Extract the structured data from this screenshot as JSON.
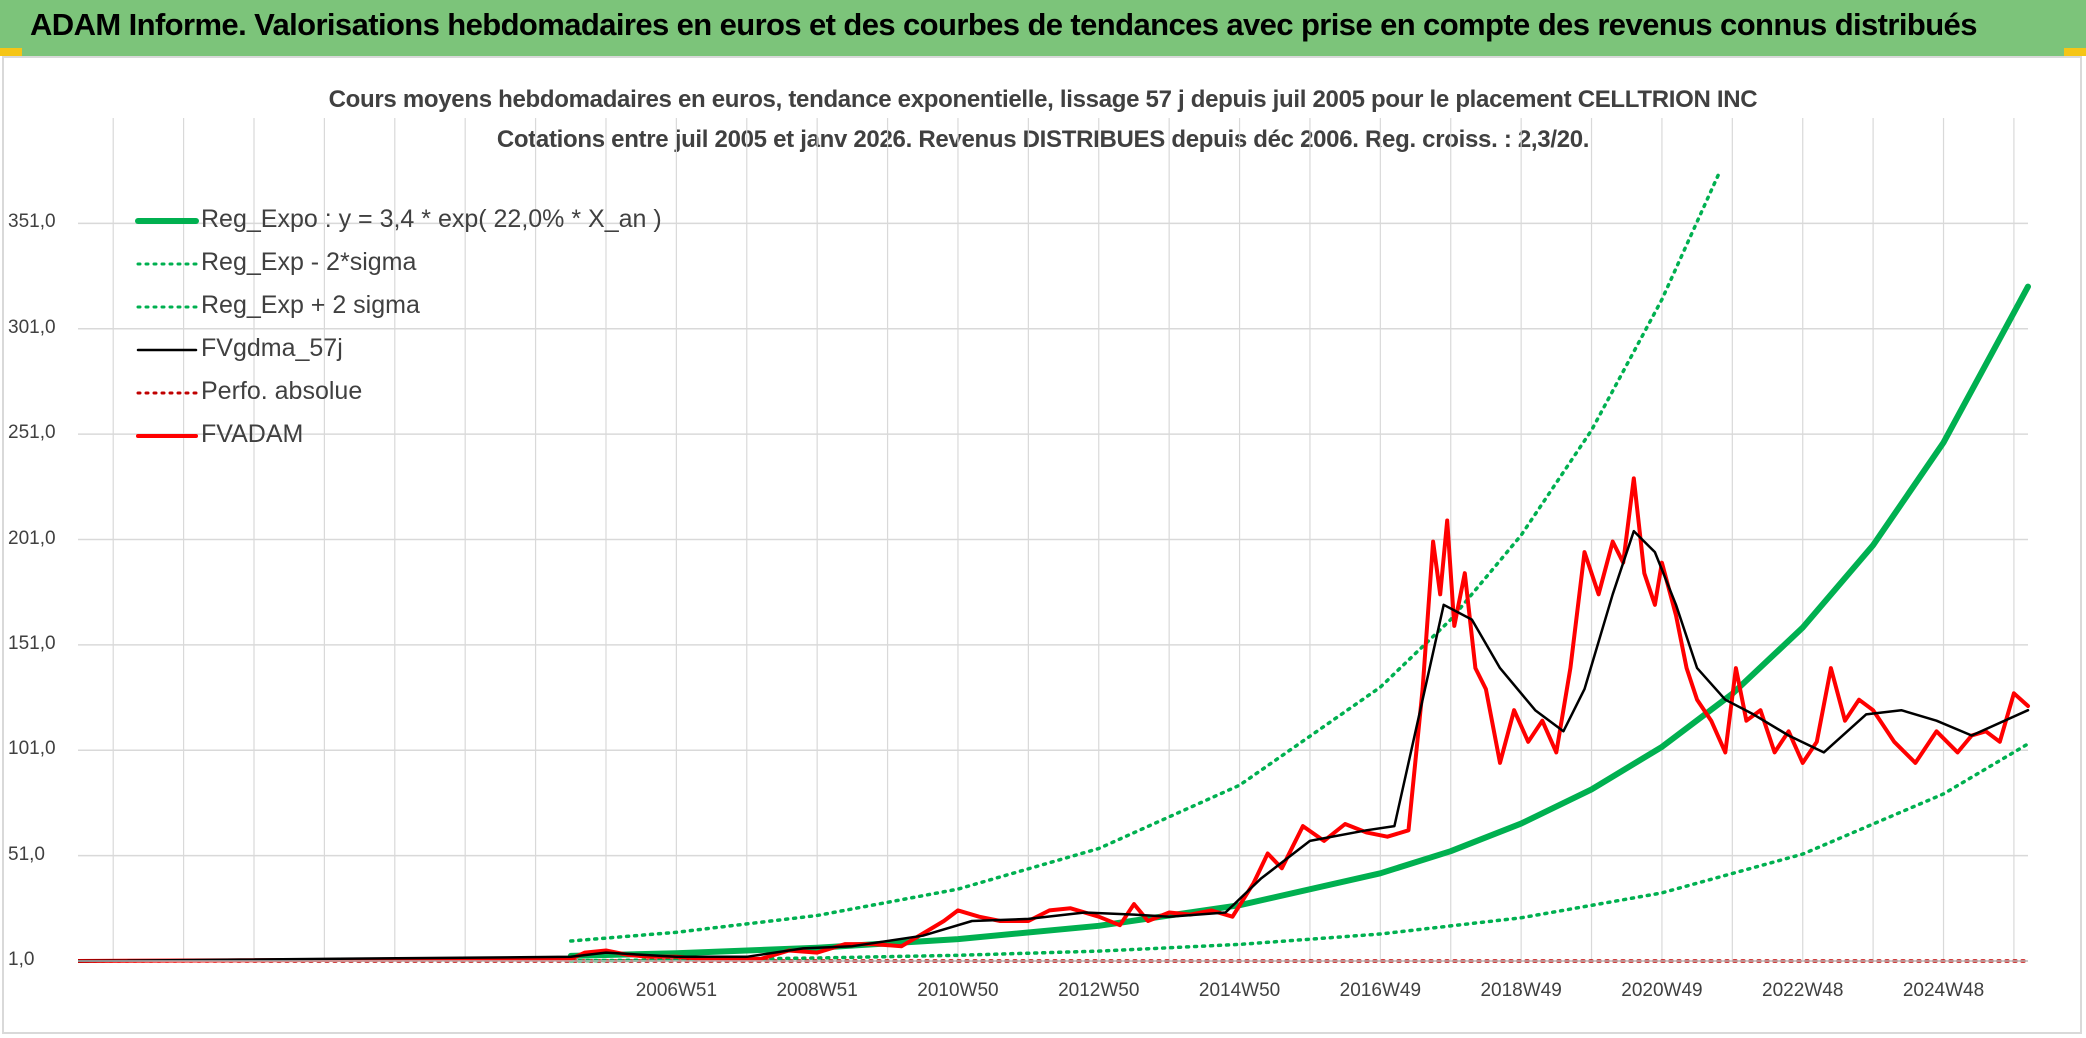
{
  "header": {
    "title": "ADAM Informe. Valorisations hebdomadaires en euros et des courbes de tendances avec prise en compte des revenus connus distribués",
    "accent_color": "#7cc47a"
  },
  "chart_data": {
    "type": "line",
    "title": "Cours moyens hebdomadaires en euros, tendance exponentielle, lissage 57 j depuis juil 2005 pour le placement CELLTRION INC",
    "subtitle": "Cotations entre juil 2005 et janv 2026. Revenus DISTRIBUES depuis déc 2006. Reg. croiss. : 2,3/20.",
    "xlabel": "",
    "ylabel": "",
    "ylim": [
      1,
      401
    ],
    "xlim": [
      1998.5,
      2026.2
    ],
    "grid": true,
    "legend_position": "top-left",
    "y_ticks": [
      "1,0",
      "51,0",
      "101,0",
      "151,0",
      "201,0",
      "251,0",
      "301,0",
      "351,0"
    ],
    "y_tick_values": [
      1,
      51,
      101,
      151,
      201,
      251,
      301,
      351
    ],
    "x_ticks": [
      "2006W51",
      "2008W51",
      "2010W50",
      "2012W50",
      "2014W50",
      "2016W49",
      "2018W49",
      "2020W49",
      "2022W48",
      "2024W48"
    ],
    "x_tick_values": [
      2007.0,
      2009.0,
      2011.0,
      2013.0,
      2015.0,
      2017.0,
      2019.0,
      2021.0,
      2023.0,
      2025.0
    ],
    "series": [
      {
        "name": "Reg_Expo : y = 3,4 * exp( 22,0% *  X_an )",
        "color": "#00b050",
        "style": "solid-thick",
        "x": [
          2005.5,
          2007,
          2009,
          2011,
          2013,
          2015,
          2017,
          2018,
          2019,
          2020,
          2021,
          2022,
          2023,
          2024,
          2025,
          2026.2
        ],
        "values": [
          3.4,
          4.7,
          7.3,
          11.4,
          17.7,
          27.5,
          42.6,
          53.1,
          66.2,
          82.4,
          102.6,
          127.8,
          159.2,
          198.3,
          247.0,
          321.0
        ]
      },
      {
        "name": "Reg_Exp - 2*sigma",
        "color": "#00b050",
        "style": "dotted",
        "x": [
          2005.5,
          2007,
          2009,
          2011,
          2013,
          2015,
          2017,
          2019,
          2021,
          2023,
          2025,
          2026.2
        ],
        "values": [
          1.1,
          1.5,
          2.4,
          3.7,
          5.7,
          8.9,
          13.8,
          21.5,
          33.3,
          51.7,
          80.3,
          104.0
        ]
      },
      {
        "name": "Reg_Exp + 2 sigma",
        "color": "#00b050",
        "style": "dotted",
        "x": [
          2005.5,
          2007,
          2009,
          2011,
          2013,
          2015,
          2017,
          2018,
          2019,
          2020,
          2021,
          2021.8
        ],
        "values": [
          10.5,
          14.6,
          22.6,
          35.1,
          54.4,
          84.4,
          130.9,
          163.0,
          203.0,
          252.8,
          314.9,
          374.0
        ]
      },
      {
        "name": "FVgdma_57j",
        "color": "#000000",
        "style": "solid",
        "x": [
          1998.5,
          2005.5,
          2006,
          2007,
          2008,
          2008.8,
          2009.5,
          2010.5,
          2011.2,
          2012,
          2012.8,
          2013.5,
          2014,
          2014.8,
          2015.3,
          2016,
          2016.8,
          2017.2,
          2017.6,
          2017.9,
          2018.3,
          2018.7,
          2019.2,
          2019.6,
          2019.9,
          2020.3,
          2020.6,
          2020.9,
          2021.2,
          2021.5,
          2021.9,
          2022.3,
          2022.8,
          2023.3,
          2023.9,
          2024.4,
          2024.9,
          2025.4,
          2026.2
        ],
        "values": [
          1,
          3,
          5,
          3,
          3,
          7,
          8,
          13,
          20,
          21,
          24,
          23,
          22,
          24,
          40,
          58,
          63,
          65,
          125,
          170,
          163,
          140,
          120,
          110,
          130,
          175,
          205,
          195,
          170,
          140,
          125,
          118,
          108,
          100,
          118,
          120,
          115,
          108,
          120
        ]
      },
      {
        "name": "Perfo. absolue",
        "color": "#c00000",
        "style": "dotted",
        "x": [
          1998.5,
          2026.2
        ],
        "values": [
          1,
          1
        ]
      },
      {
        "name": "FVADAM",
        "color": "#ff0000",
        "style": "solid-thick",
        "x": [
          1998.5,
          2005.5,
          2005.7,
          2006.0,
          2006.3,
          2006.6,
          2007.0,
          2007.4,
          2007.8,
          2008.2,
          2008.6,
          2009.0,
          2009.4,
          2009.8,
          2010.2,
          2010.5,
          2010.8,
          2011.0,
          2011.3,
          2011.6,
          2012.0,
          2012.3,
          2012.6,
          2013.0,
          2013.3,
          2013.5,
          2013.7,
          2014.0,
          2014.3,
          2014.6,
          2014.9,
          2015.2,
          2015.4,
          2015.6,
          2015.9,
          2016.2,
          2016.5,
          2016.8,
          2017.1,
          2017.4,
          2017.6,
          2017.75,
          2017.85,
          2017.95,
          2018.05,
          2018.2,
          2018.35,
          2018.5,
          2018.7,
          2018.9,
          2019.1,
          2019.3,
          2019.5,
          2019.7,
          2019.9,
          2020.1,
          2020.3,
          2020.45,
          2020.6,
          2020.75,
          2020.9,
          2021.0,
          2021.2,
          2021.35,
          2021.5,
          2021.7,
          2021.9,
          2022.05,
          2022.2,
          2022.4,
          2022.6,
          2022.8,
          2023.0,
          2023.2,
          2023.4,
          2023.6,
          2023.8,
          2024.0,
          2024.1,
          2024.3,
          2024.6,
          2024.9,
          2025.2,
          2025.4,
          2025.6,
          2025.8,
          2026.0,
          2026.2
        ],
        "values": [
          1,
          2,
          5,
          6,
          4,
          3,
          3,
          2,
          2,
          2,
          6,
          5,
          9,
          9,
          8,
          14,
          20,
          25,
          22,
          20,
          20,
          25,
          26,
          22,
          18,
          28,
          20,
          24,
          23,
          25,
          22,
          38,
          52,
          45,
          65,
          58,
          66,
          62,
          60,
          63,
          130,
          200,
          175,
          210,
          160,
          185,
          140,
          130,
          95,
          120,
          105,
          115,
          100,
          140,
          195,
          175,
          200,
          190,
          230,
          185,
          170,
          190,
          165,
          140,
          125,
          115,
          100,
          140,
          115,
          120,
          100,
          110,
          95,
          105,
          140,
          115,
          125,
          120,
          115,
          105,
          95,
          110,
          100,
          108,
          110,
          105,
          128,
          122
        ]
      }
    ]
  }
}
